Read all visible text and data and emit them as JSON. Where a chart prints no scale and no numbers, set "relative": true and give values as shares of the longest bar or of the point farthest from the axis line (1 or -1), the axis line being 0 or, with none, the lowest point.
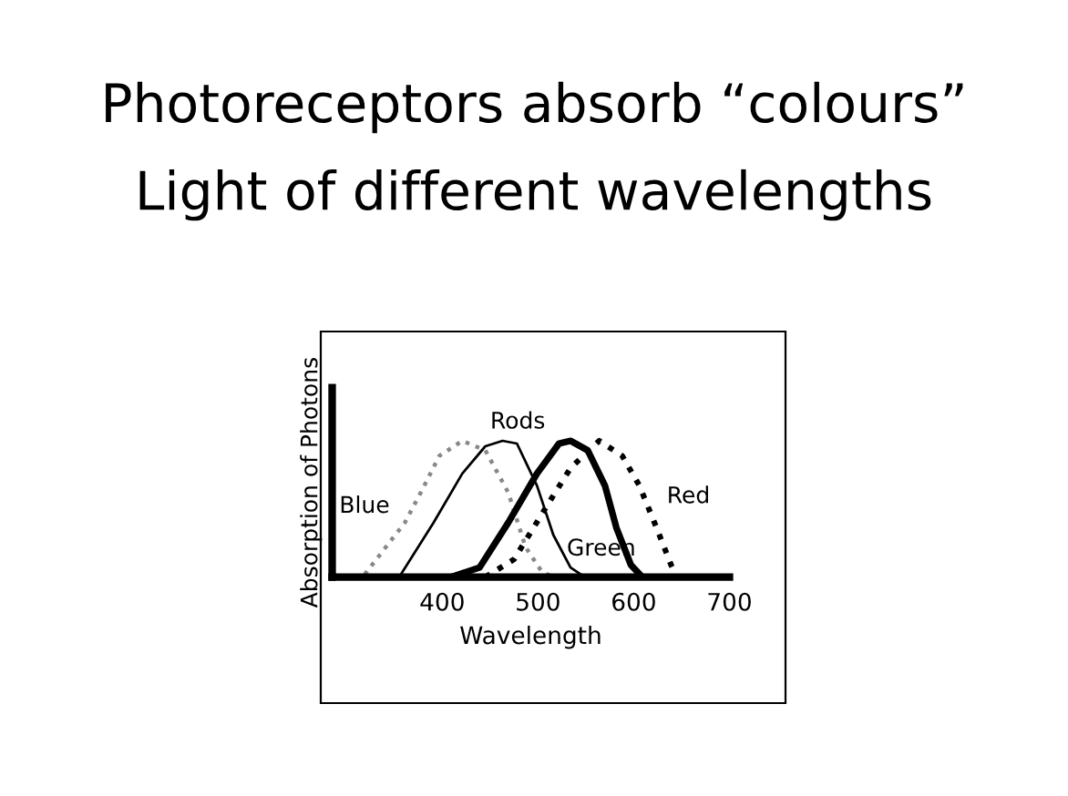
{
  "chart_data": {
    "type": "line",
    "title": "Photoreceptors absorb “colours”",
    "subtitle": "Light of different wavelengths",
    "xlabel": "Wavelength",
    "ylabel": "Absorption of Photons",
    "relative": true,
    "xlim": [
      285,
      700
    ],
    "xticks": [
      400,
      500,
      600,
      700
    ],
    "grid": false,
    "legend": false,
    "marker": "none",
    "series": [
      {
        "name": "Blue",
        "color": "#888888",
        "line_style": "dotted",
        "x": [
          319,
          361,
          379,
          397,
          421,
          445,
          469,
          487,
          504,
          516
        ],
        "values": [
          0.02,
          0.4,
          0.64,
          0.89,
          1.0,
          0.93,
          0.62,
          0.22,
          0.04,
          0
        ]
      },
      {
        "name": "Rods",
        "color": "#000000",
        "line_style": "solid",
        "x": [
          355,
          391,
          421,
          445,
          463,
          478,
          499,
          516,
          534,
          549
        ],
        "values": [
          0,
          0.4,
          0.76,
          0.96,
          1.0,
          0.98,
          0.67,
          0.31,
          0.07,
          0
        ]
      },
      {
        "name": "Green",
        "color": "#000000",
        "line_style": "solid",
        "x": [
          409,
          439,
          469,
          499,
          522,
          534,
          552,
          570,
          582,
          597,
          609
        ],
        "values": [
          0,
          0.07,
          0.4,
          0.76,
          0.98,
          1.0,
          0.93,
          0.67,
          0.36,
          0.09,
          0
        ]
      },
      {
        "name": "Red",
        "color": "#000000",
        "line_style": "dotted",
        "x": [
          445,
          475,
          510,
          534,
          564,
          588,
          606,
          624,
          639,
          645
        ],
        "values": [
          0,
          0.13,
          0.53,
          0.8,
          1.0,
          0.89,
          0.67,
          0.36,
          0.09,
          0
        ]
      }
    ]
  }
}
